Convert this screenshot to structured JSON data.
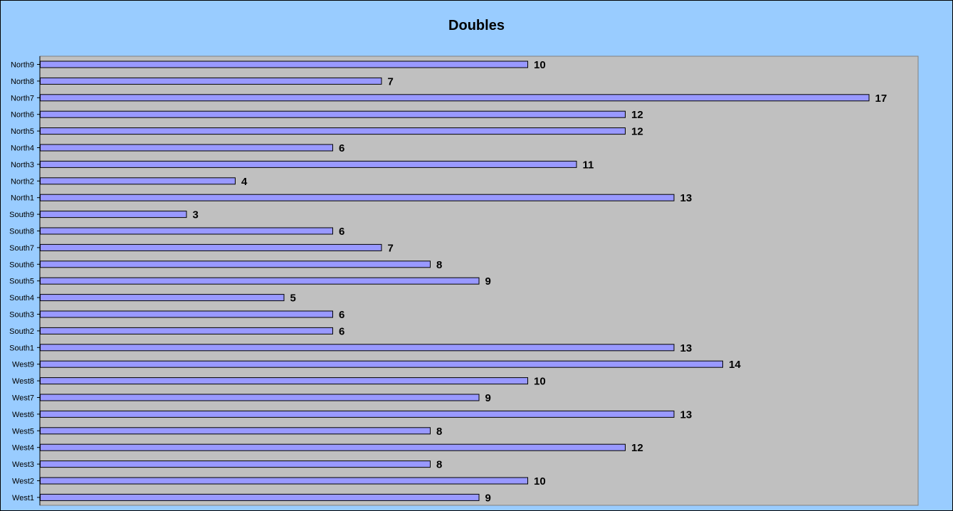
{
  "chart_data": {
    "type": "bar",
    "orientation": "horizontal",
    "title": "Doubles",
    "xlabel": "",
    "ylabel": "",
    "xlim": [
      0,
      18
    ],
    "grid": false,
    "legend": "none",
    "data_labels": true,
    "categories": [
      "North9",
      "North8",
      "North7",
      "North6",
      "North5",
      "North4",
      "North3",
      "North2",
      "North1",
      "South9",
      "South8",
      "South7",
      "South6",
      "South5",
      "South4",
      "South3",
      "South2",
      "South1",
      "West9",
      "West8",
      "West7",
      "West6",
      "West5",
      "West4",
      "West3",
      "West2",
      "West1"
    ],
    "series": [
      {
        "values": [
          10,
          7,
          17,
          12,
          12,
          6,
          11,
          4,
          13,
          3,
          6,
          7,
          8,
          9,
          5,
          6,
          6,
          13,
          14,
          10,
          9,
          13,
          8,
          12,
          8,
          10,
          9
        ]
      }
    ],
    "colors": {
      "background": "#99CCFF",
      "plot_area": "#C0C0C0",
      "bar_fill": "#9999FF",
      "bar_stroke": "#000000"
    }
  }
}
